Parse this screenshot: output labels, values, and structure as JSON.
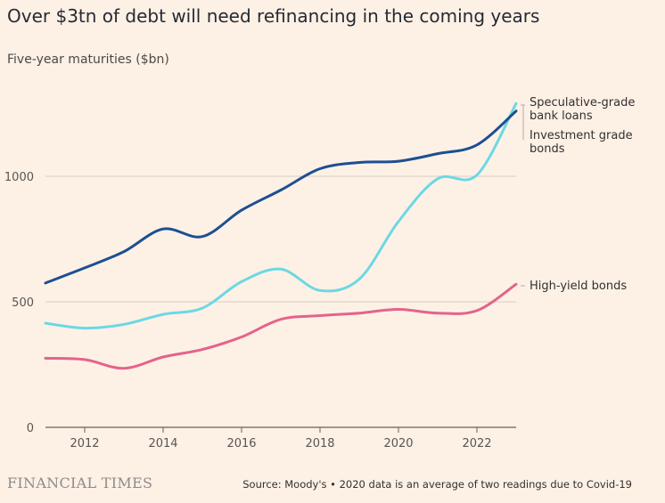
{
  "header": {
    "title": "Over $3tn of debt will need refinancing in the coming years",
    "subtitle": "Five-year maturities ($bn)"
  },
  "chart_data": {
    "type": "line",
    "title": "Over $3tn of debt will need refinancing in the coming years",
    "subtitle": "Five-year maturities ($bn)",
    "xlabel": "",
    "ylabel": "",
    "xlim": [
      2011,
      2023
    ],
    "ylim": [
      0,
      1250
    ],
    "x_ticks": [
      2012,
      2014,
      2016,
      2018,
      2020,
      2022
    ],
    "y_ticks": [
      0,
      500,
      1000
    ],
    "grid": "horizontal",
    "x": [
      2011,
      2012,
      2013,
      2014,
      2015,
      2016,
      2017,
      2018,
      2019,
      2020,
      2021,
      2022,
      2023
    ],
    "series": [
      {
        "name": "Speculative-grade bank loans",
        "color": "#6dd8e3",
        "values": [
          415,
          395,
          410,
          450,
          475,
          580,
          630,
          545,
          590,
          820,
          990,
          1005,
          1290
        ]
      },
      {
        "name": "Investment grade bonds",
        "color": "#1d4f91",
        "values": [
          575,
          635,
          700,
          790,
          760,
          865,
          945,
          1030,
          1055,
          1060,
          1090,
          1125,
          1260
        ]
      },
      {
        "name": "High-yield bonds",
        "color": "#e4638b",
        "values": [
          275,
          270,
          235,
          280,
          310,
          360,
          430,
          445,
          455,
          470,
          455,
          465,
          570
        ]
      }
    ],
    "legend": "direct labels at right"
  },
  "labels": {
    "speculative": [
      "Speculative-grade",
      "bank loans"
    ],
    "investment": [
      "Investment grade",
      "bonds"
    ],
    "high_yield": "High-yield bonds"
  },
  "footer": {
    "brand": "FINANCIAL TIMES",
    "source": "Source: Moody's • 2020 data is an average of two readings due to Covid-19"
  }
}
